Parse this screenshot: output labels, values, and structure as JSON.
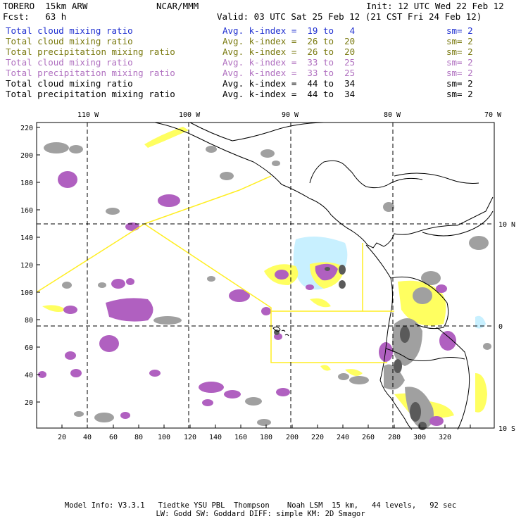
{
  "header": {
    "model": "TORERO  15km ARW",
    "org": "NCAR/MMM",
    "init": "Init: 12 UTC Wed 22 Feb 12",
    "fcst": "Fcst:   63 h",
    "valid": "Valid: 03 UTC Sat 25 Feb 12 (21 CST Fri 24 Feb 12)"
  },
  "legend": [
    {
      "field": "Total cloud mixing ratio",
      "kindex": "Avg. k-index =  19 to   4",
      "sm": "sm= 2",
      "color": "#1f2fd0",
      "cls": "c-blue"
    },
    {
      "field": "Total cloud mixing ratio",
      "kindex": "Avg. k-index =  26 to  20",
      "sm": "sm= 2",
      "color": "#7a7a10",
      "cls": "c-olive"
    },
    {
      "field": "Total precipitation mixing ratio",
      "kindex": "Avg. k-index =  26 to  20",
      "sm": "sm= 2",
      "color": "#7a7a10",
      "cls": "c-olive"
    },
    {
      "field": "Total cloud mixing ratio",
      "kindex": "Avg. k-index =  33 to  25",
      "sm": "sm= 2",
      "color": "#b070c0",
      "cls": "c-purple"
    },
    {
      "field": "Total precipitation mixing ratio",
      "kindex": "Avg. k-index =  33 to  25",
      "sm": "sm= 2",
      "color": "#b070c0",
      "cls": "c-purple"
    },
    {
      "field": "Total cloud mixing ratio",
      "kindex": "Avg. k-index =  44 to  34",
      "sm": "sm= 2",
      "color": "#000000",
      "cls": "c-black"
    },
    {
      "field": "Total precipitation mixing ratio",
      "kindex": "Avg. k-index =  44 to  34",
      "sm": "sm= 2",
      "color": "#000000",
      "cls": "c-black"
    }
  ],
  "axes": {
    "top_lon": [
      "110 W",
      "100 W",
      "90 W",
      "80 W",
      "70 W"
    ],
    "right_lat": [
      "10 N",
      "0",
      "10 S"
    ],
    "left_ticks": [
      "220",
      "200",
      "180",
      "160",
      "140",
      "120",
      "100",
      "80",
      "60",
      "40",
      "20"
    ],
    "bottom_ticks": [
      "20",
      "40",
      "60",
      "80",
      "100",
      "120",
      "140",
      "160",
      "180",
      "200",
      "220",
      "240",
      "260",
      "280",
      "300",
      "320"
    ]
  },
  "colors": {
    "gray": "#a0a0a0",
    "dark_gray": "#5a5a5a",
    "purple": "#b060c0",
    "yellow": "#ffff60",
    "cyan": "#c8f0ff",
    "boundary": "#ffee22",
    "coast": "#000000"
  },
  "footer": {
    "line1": "Model Info: V3.3.1   Tiedtke YSU PBL  Thompson    Noah LSM  15 km,   44 levels,   92 sec",
    "line2": "LW: Godd SW: Goddard DIFF: simple KM: 2D Smagor"
  }
}
